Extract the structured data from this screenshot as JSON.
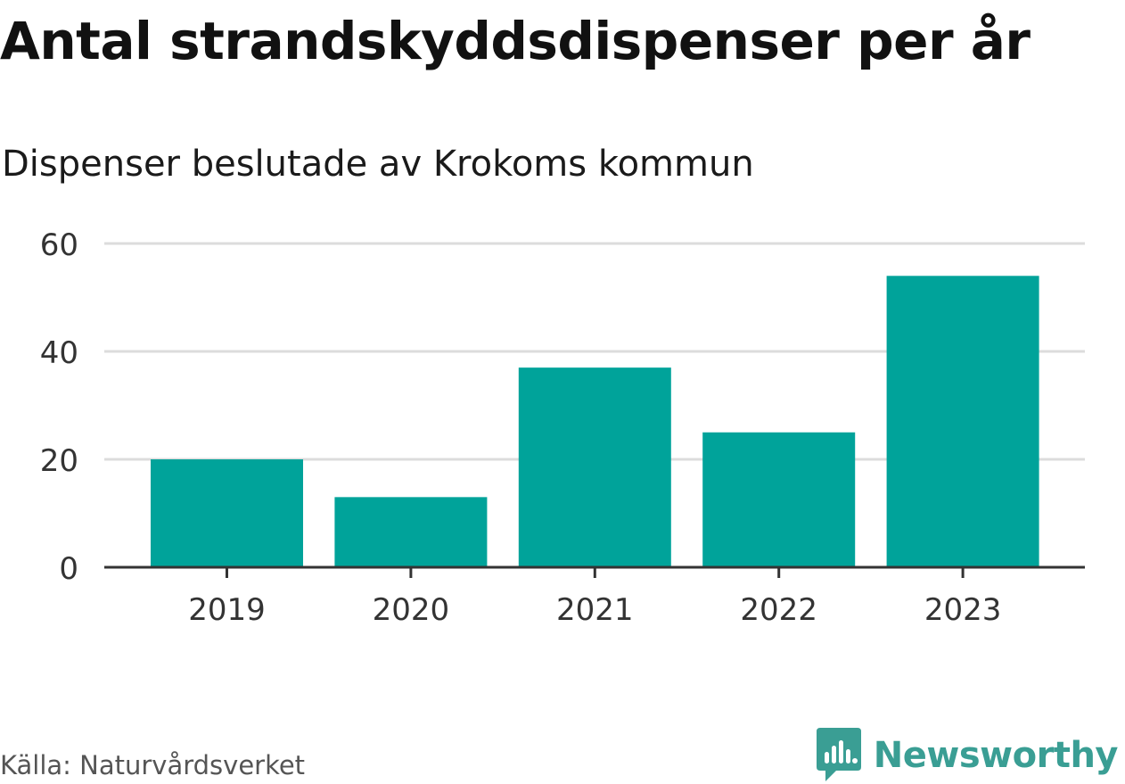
{
  "title": "Antal strandskyddsdispenser per år",
  "subtitle": "Dispenser beslutade av Krokoms kommun",
  "source": "Källa: Naturvårdsverket",
  "brand": {
    "name": "Newsworthy",
    "icon": "newsworthy-logo-icon",
    "color": "#3a9e94"
  },
  "colors": {
    "bar": "#00a39a",
    "grid": "#dcdcdc",
    "axis": "#333333"
  },
  "chart_data": {
    "type": "bar",
    "categories": [
      "2019",
      "2020",
      "2021",
      "2022",
      "2023"
    ],
    "values": [
      20,
      13,
      37,
      25,
      54
    ],
    "title": "Antal strandskyddsdispenser per år",
    "subtitle": "Dispenser beslutade av Krokoms kommun",
    "xlabel": "",
    "ylabel": "",
    "ylim": [
      0,
      60
    ],
    "yticks": [
      0,
      20,
      40,
      60
    ],
    "grid": true,
    "legend": "none"
  }
}
